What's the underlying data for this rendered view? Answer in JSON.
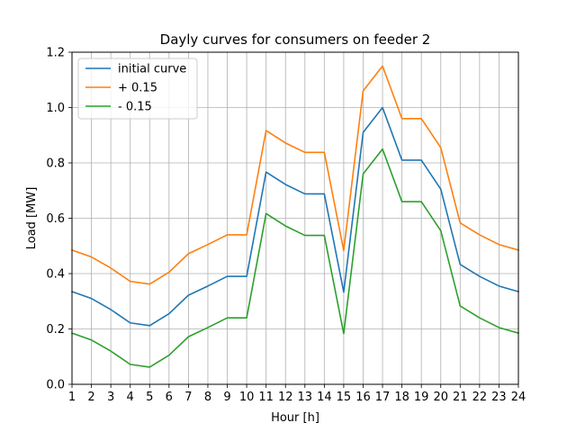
{
  "chart_data": {
    "type": "line",
    "title": "Dayly curves for consumers on feeder 2",
    "xlabel": "Hour [h]",
    "ylabel": "Load [MW]",
    "x": [
      1,
      2,
      3,
      4,
      5,
      6,
      7,
      8,
      9,
      10,
      11,
      12,
      13,
      14,
      15,
      16,
      17,
      18,
      19,
      20,
      21,
      22,
      23,
      24
    ],
    "xlim": [
      1,
      24
    ],
    "ylim": [
      0,
      1.2
    ],
    "xticks": [
      1,
      2,
      3,
      4,
      5,
      6,
      7,
      8,
      9,
      10,
      11,
      12,
      13,
      14,
      15,
      16,
      17,
      18,
      19,
      20,
      21,
      22,
      23,
      24
    ],
    "yticks": [
      "0.0",
      "0.2",
      "0.4",
      "0.6",
      "0.8",
      "1.0",
      "1.2"
    ],
    "grid": true,
    "legend_position": "top-left",
    "series": [
      {
        "name": "initial curve",
        "color": "#1f77b4",
        "values": [
          0.335,
          0.31,
          0.27,
          0.222,
          0.212,
          0.255,
          0.322,
          0.355,
          0.39,
          0.39,
          0.767,
          0.722,
          0.688,
          0.688,
          0.333,
          0.91,
          1.0,
          0.81,
          0.81,
          0.705,
          0.433,
          0.39,
          0.355,
          0.335
        ]
      },
      {
        "name": "+ 0.15",
        "color": "#ff7f0e",
        "values": [
          0.485,
          0.46,
          0.42,
          0.372,
          0.362,
          0.405,
          0.472,
          0.505,
          0.54,
          0.54,
          0.917,
          0.872,
          0.838,
          0.838,
          0.483,
          1.06,
          1.15,
          0.96,
          0.96,
          0.855,
          0.583,
          0.54,
          0.505,
          0.485
        ]
      },
      {
        "name": "- 0.15",
        "color": "#2ca02c",
        "values": [
          0.185,
          0.16,
          0.12,
          0.072,
          0.062,
          0.105,
          0.172,
          0.205,
          0.24,
          0.24,
          0.617,
          0.572,
          0.538,
          0.538,
          0.183,
          0.76,
          0.85,
          0.66,
          0.66,
          0.555,
          0.283,
          0.24,
          0.205,
          0.185
        ]
      }
    ]
  }
}
